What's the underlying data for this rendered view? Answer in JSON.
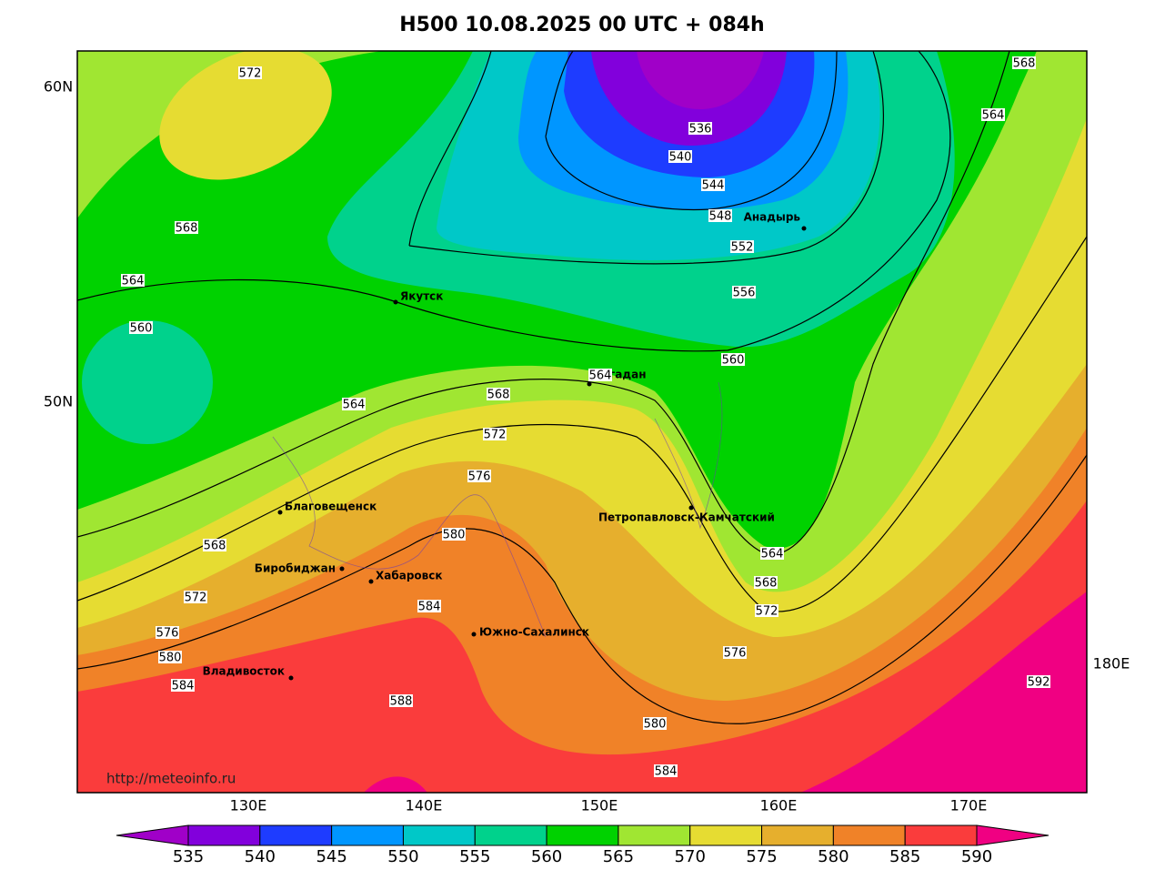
{
  "title": "H500  10.08.2025 00 UTC + 084h",
  "lat_labels": [
    "60N",
    "50N"
  ],
  "lon_labels": [
    "130E",
    "140E",
    "150E",
    "160E",
    "170E",
    "180E"
  ],
  "source": "http://meteoinfo.ru",
  "cities": [
    {
      "name": "Якутск"
    },
    {
      "name": "Анадырь"
    },
    {
      "name": "Магадан"
    },
    {
      "name": "Благовещенск"
    },
    {
      "name": "Биробиджан"
    },
    {
      "name": "Хабаровск"
    },
    {
      "name": "Южно-Сахалинск"
    },
    {
      "name": "Владивосток"
    },
    {
      "name": "Петропавловск-Камчатский"
    }
  ],
  "contour_labels": [
    572,
    568,
    564,
    560,
    564,
    564,
    568,
    572,
    576,
    580,
    584,
    588,
    536,
    540,
    544,
    548,
    552,
    556,
    560,
    564,
    568,
    572,
    576,
    580,
    584,
    592,
    568,
    572,
    576,
    580,
    584,
    568,
    564
  ],
  "colorbar": {
    "ticks": [
      535,
      540,
      545,
      550,
      555,
      560,
      565,
      570,
      575,
      580,
      585,
      590
    ],
    "colors": [
      "#a000c8",
      "#8200dc",
      "#1e3cff",
      "#0096ff",
      "#00c8c8",
      "#00d28c",
      "#00d200",
      "#a0e632",
      "#e6dc32",
      "#e6af2d",
      "#f08228",
      "#fa3c3c",
      "#f00082"
    ]
  }
}
